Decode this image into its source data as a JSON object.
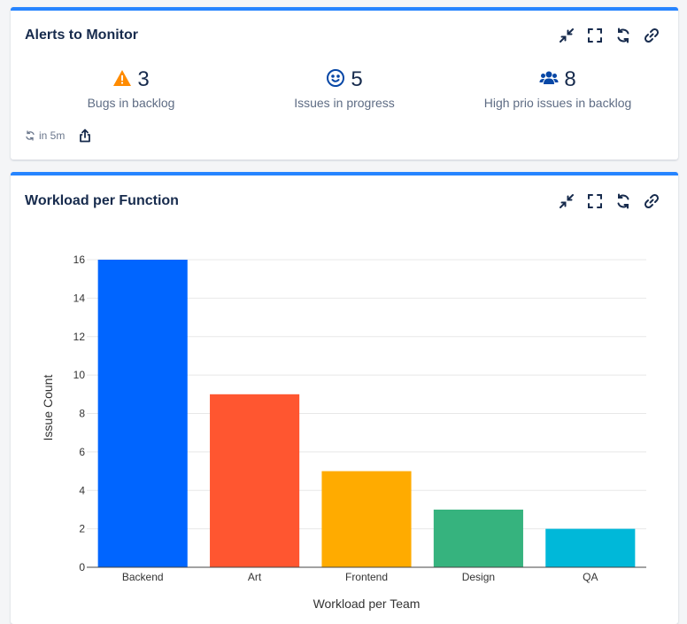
{
  "alerts_card": {
    "title": "Alerts to Monitor",
    "stats": [
      {
        "icon": "warning-icon",
        "value": "3",
        "label": "Bugs in backlog",
        "color": "#ff8b00"
      },
      {
        "icon": "smiley-icon",
        "value": "5",
        "label": "Issues in progress",
        "color": "#0747a6"
      },
      {
        "icon": "users-icon",
        "value": "8",
        "label": "High prio issues in backlog",
        "color": "#0747a6"
      }
    ],
    "refresh_text": "in 5m"
  },
  "workload_card": {
    "title": "Workload per Function"
  },
  "chart_data": {
    "type": "bar",
    "categories": [
      "Backend",
      "Art",
      "Frontend",
      "Design",
      "QA"
    ],
    "values": [
      16,
      9,
      5,
      3,
      2
    ],
    "colors": [
      "#0065ff",
      "#ff5630",
      "#ffab00",
      "#36b37e",
      "#00b8d9"
    ],
    "title": "",
    "xlabel": "Workload per Team",
    "ylabel": "Issue Count",
    "ylim": [
      0,
      16
    ],
    "yticks": [
      0,
      2,
      4,
      6,
      8,
      10,
      12,
      14,
      16
    ],
    "grid": true,
    "legend": "none"
  }
}
